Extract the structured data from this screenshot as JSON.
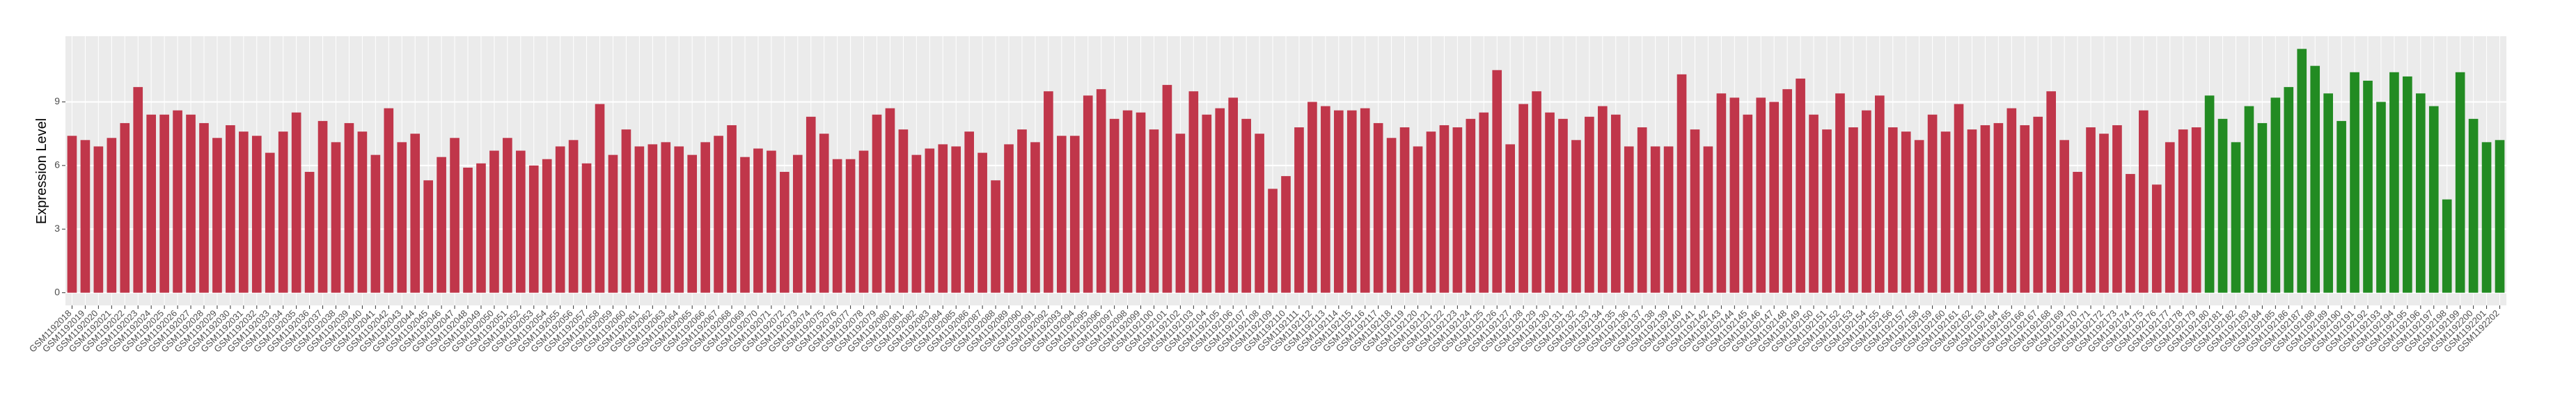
{
  "chart_data": {
    "type": "bar",
    "y_label": "Expression Level",
    "ylim": [
      -0.6,
      12.1
    ],
    "yticks": [
      0,
      3,
      6,
      9
    ],
    "grid": true,
    "categories": [
      "GSM1192018",
      "GSM1192019",
      "GSM1192020",
      "GSM1192021",
      "GSM1192022",
      "GSM1192023",
      "GSM1192024",
      "GSM1192025",
      "GSM1192026",
      "GSM1192027",
      "GSM1192028",
      "GSM1192029",
      "GSM1192030",
      "GSM1192031",
      "GSM1192032",
      "GSM1192033",
      "GSM1192034",
      "GSM1192035",
      "GSM1192036",
      "GSM1192037",
      "GSM1192038",
      "GSM1192039",
      "GSM1192040",
      "GSM1192041",
      "GSM1192042",
      "GSM1192043",
      "GSM1192044",
      "GSM1192045",
      "GSM1192046",
      "GSM1192047",
      "GSM1192048",
      "GSM1192049",
      "GSM1192050",
      "GSM1192051",
      "GSM1192052",
      "GSM1192053",
      "GSM1192054",
      "GSM1192055",
      "GSM1192056",
      "GSM1192057",
      "GSM1192058",
      "GSM1192059",
      "GSM1192060",
      "GSM1192061",
      "GSM1192062",
      "GSM1192063",
      "GSM1192064",
      "GSM1192065",
      "GSM1192066",
      "GSM1192067",
      "GSM1192068",
      "GSM1192069",
      "GSM1192070",
      "GSM1192071",
      "GSM1192072",
      "GSM1192073",
      "GSM1192074",
      "GSM1192075",
      "GSM1192076",
      "GSM1192077",
      "GSM1192078",
      "GSM1192079",
      "GSM1192080",
      "GSM1192081",
      "GSM1192082",
      "GSM1192083",
      "GSM1192084",
      "GSM1192085",
      "GSM1192086",
      "GSM1192087",
      "GSM1192088",
      "GSM1192089",
      "GSM1192090",
      "GSM1192091",
      "GSM1192092",
      "GSM1192093",
      "GSM1192094",
      "GSM1192095",
      "GSM1192096",
      "GSM1192097",
      "GSM1192098",
      "GSM1192099",
      "GSM1192100",
      "GSM1192101",
      "GSM1192102",
      "GSM1192103",
      "GSM1192104",
      "GSM1192105",
      "GSM1192106",
      "GSM1192107",
      "GSM1192108",
      "GSM1192109",
      "GSM1192110",
      "GSM1192111",
      "GSM1192112",
      "GSM1192113",
      "GSM1192114",
      "GSM1192115",
      "GSM1192116",
      "GSM1192117",
      "GSM1192118",
      "GSM1192119",
      "GSM1192120",
      "GSM1192121",
      "GSM1192122",
      "GSM1192123",
      "GSM1192124",
      "GSM1192125",
      "GSM1192126",
      "GSM1192127",
      "GSM1192128",
      "GSM1192129",
      "GSM1192130",
      "GSM1192131",
      "GSM1192132",
      "GSM1192133",
      "GSM1192134",
      "GSM1192135",
      "GSM1192136",
      "GSM1192137",
      "GSM1192138",
      "GSM1192139",
      "GSM1192140",
      "GSM1192141",
      "GSM1192142",
      "GSM1192143",
      "GSM1192144",
      "GSM1192145",
      "GSM1192146",
      "GSM1192147",
      "GSM1192148",
      "GSM1192149",
      "GSM1192150",
      "GSM1192151",
      "GSM1192152",
      "GSM1192153",
      "GSM1192154",
      "GSM1192155",
      "GSM1192156",
      "GSM1192157",
      "GSM1192158",
      "GSM1192159",
      "GSM1192160",
      "GSM1192161",
      "GSM1192162",
      "GSM1192163",
      "GSM1192164",
      "GSM1192165",
      "GSM1192166",
      "GSM1192167",
      "GSM1192168",
      "GSM1192169",
      "GSM1192170",
      "GSM1192171",
      "GSM1192172",
      "GSM1192173",
      "GSM1192174",
      "GSM1192175",
      "GSM1192176",
      "GSM1192177",
      "GSM1192178",
      "GSM1192179",
      "GSM1192180",
      "GSM1192181",
      "GSM1192182",
      "GSM1192183",
      "GSM1192184",
      "GSM1192185",
      "GSM1192186",
      "GSM1192187",
      "GSM1192188",
      "GSM1192189",
      "GSM1192190",
      "GSM1192191",
      "GSM1192192",
      "GSM1192193",
      "GSM1192194",
      "GSM1192195",
      "GSM1192196",
      "GSM1192197",
      "GSM1192198",
      "GSM1192199",
      "GSM1192200",
      "GSM1192201",
      "GSM1192202"
    ],
    "values": [
      7.4,
      7.2,
      6.9,
      7.3,
      8.0,
      9.7,
      8.4,
      8.4,
      8.6,
      8.4,
      8.0,
      7.3,
      7.9,
      7.6,
      7.4,
      6.6,
      7.6,
      8.5,
      5.7,
      8.1,
      7.1,
      8.0,
      7.6,
      6.5,
      8.7,
      7.1,
      7.5,
      5.3,
      6.4,
      7.3,
      5.9,
      6.1,
      6.7,
      7.3,
      6.7,
      6.0,
      6.3,
      6.9,
      7.2,
      6.1,
      8.9,
      6.5,
      7.7,
      6.9,
      7.0,
      7.1,
      6.9,
      6.5,
      7.1,
      7.4,
      7.9,
      6.4,
      6.8,
      6.7,
      5.7,
      6.5,
      8.3,
      7.5,
      6.3,
      6.3,
      6.7,
      8.4,
      8.7,
      7.7,
      6.5,
      6.8,
      7.0,
      6.9,
      7.6,
      6.6,
      5.3,
      7.0,
      7.7,
      7.1,
      9.5,
      7.4,
      7.4,
      9.3,
      9.6,
      8.2,
      8.6,
      8.5,
      7.7,
      9.8,
      7.5,
      9.5,
      8.4,
      8.7,
      9.2,
      8.2,
      7.5,
      4.9,
      5.5,
      7.8,
      9.0,
      8.8,
      8.6,
      8.6,
      8.7,
      8.0,
      7.3,
      7.8,
      6.9,
      7.6,
      7.9,
      7.8,
      8.2,
      8.5,
      10.5,
      7.0,
      8.9,
      9.5,
      8.5,
      8.2,
      7.2,
      8.3,
      8.8,
      8.4,
      6.9,
      7.8,
      6.9,
      6.9,
      10.3,
      7.7,
      6.9,
      9.4,
      9.2,
      8.4,
      9.2,
      9.0,
      9.6,
      10.1,
      8.4,
      7.7,
      9.4,
      7.8,
      8.6,
      9.3,
      7.8,
      7.6,
      7.2,
      8.4,
      7.6,
      8.9,
      7.7,
      7.9,
      8.0,
      8.7,
      7.9,
      8.3,
      9.5,
      7.2,
      5.7,
      7.8,
      7.5,
      7.9,
      5.6,
      8.6,
      5.1,
      7.1,
      7.7,
      7.8,
      9.3,
      8.2,
      7.1,
      8.8,
      8.0,
      9.2,
      9.7,
      11.5,
      10.7,
      9.4,
      8.1,
      10.4,
      10.0,
      9.0,
      10.4,
      10.2,
      9.4,
      8.8,
      4.4,
      10.4,
      8.2,
      7.1,
      7.2
    ],
    "colors": [
      "#c0364a",
      "#c0364a",
      "#c0364a",
      "#c0364a",
      "#c0364a",
      "#c0364a",
      "#c0364a",
      "#c0364a",
      "#c0364a",
      "#c0364a",
      "#c0364a",
      "#c0364a",
      "#c0364a",
      "#c0364a",
      "#c0364a",
      "#c0364a",
      "#c0364a",
      "#c0364a",
      "#c0364a",
      "#c0364a",
      "#c0364a",
      "#c0364a",
      "#c0364a",
      "#c0364a",
      "#c0364a",
      "#c0364a",
      "#c0364a",
      "#c0364a",
      "#c0364a",
      "#c0364a",
      "#c0364a",
      "#c0364a",
      "#c0364a",
      "#c0364a",
      "#c0364a",
      "#c0364a",
      "#c0364a",
      "#c0364a",
      "#c0364a",
      "#c0364a",
      "#c0364a",
      "#c0364a",
      "#c0364a",
      "#c0364a",
      "#c0364a",
      "#c0364a",
      "#c0364a",
      "#c0364a",
      "#c0364a",
      "#c0364a",
      "#c0364a",
      "#c0364a",
      "#c0364a",
      "#c0364a",
      "#c0364a",
      "#c0364a",
      "#c0364a",
      "#c0364a",
      "#c0364a",
      "#c0364a",
      "#c0364a",
      "#c0364a",
      "#c0364a",
      "#c0364a",
      "#c0364a",
      "#c0364a",
      "#c0364a",
      "#c0364a",
      "#c0364a",
      "#c0364a",
      "#c0364a",
      "#c0364a",
      "#c0364a",
      "#c0364a",
      "#c0364a",
      "#c0364a",
      "#c0364a",
      "#c0364a",
      "#c0364a",
      "#c0364a",
      "#c0364a",
      "#c0364a",
      "#c0364a",
      "#c0364a",
      "#c0364a",
      "#c0364a",
      "#c0364a",
      "#c0364a",
      "#c0364a",
      "#c0364a",
      "#c0364a",
      "#c0364a",
      "#c0364a",
      "#c0364a",
      "#c0364a",
      "#c0364a",
      "#c0364a",
      "#c0364a",
      "#c0364a",
      "#c0364a",
      "#c0364a",
      "#c0364a",
      "#c0364a",
      "#c0364a",
      "#c0364a",
      "#c0364a",
      "#c0364a",
      "#c0364a",
      "#c0364a",
      "#c0364a",
      "#c0364a",
      "#c0364a",
      "#c0364a",
      "#c0364a",
      "#c0364a",
      "#c0364a",
      "#c0364a",
      "#c0364a",
      "#c0364a",
      "#c0364a",
      "#c0364a",
      "#c0364a",
      "#c0364a",
      "#c0364a",
      "#c0364a",
      "#c0364a",
      "#c0364a",
      "#c0364a",
      "#c0364a",
      "#c0364a",
      "#c0364a",
      "#c0364a",
      "#c0364a",
      "#c0364a",
      "#c0364a",
      "#c0364a",
      "#c0364a",
      "#c0364a",
      "#c0364a",
      "#c0364a",
      "#c0364a",
      "#c0364a",
      "#c0364a",
      "#c0364a",
      "#c0364a",
      "#c0364a",
      "#c0364a",
      "#c0364a",
      "#c0364a",
      "#c0364a",
      "#c0364a",
      "#c0364a",
      "#c0364a",
      "#c0364a",
      "#c0364a",
      "#c0364a",
      "#c0364a",
      "#c0364a",
      "#c0364a",
      "#c0364a",
      "#c0364a",
      "#c0364a",
      "#228b22",
      "#228b22",
      "#228b22",
      "#228b22",
      "#228b22",
      "#228b22",
      "#228b22",
      "#228b22",
      "#228b22",
      "#228b22",
      "#228b22",
      "#228b22",
      "#228b22",
      "#228b22",
      "#228b22",
      "#228b22",
      "#228b22",
      "#228b22",
      "#228b22",
      "#228b22",
      "#228b22",
      "#228b22",
      "#228b22"
    ]
  }
}
